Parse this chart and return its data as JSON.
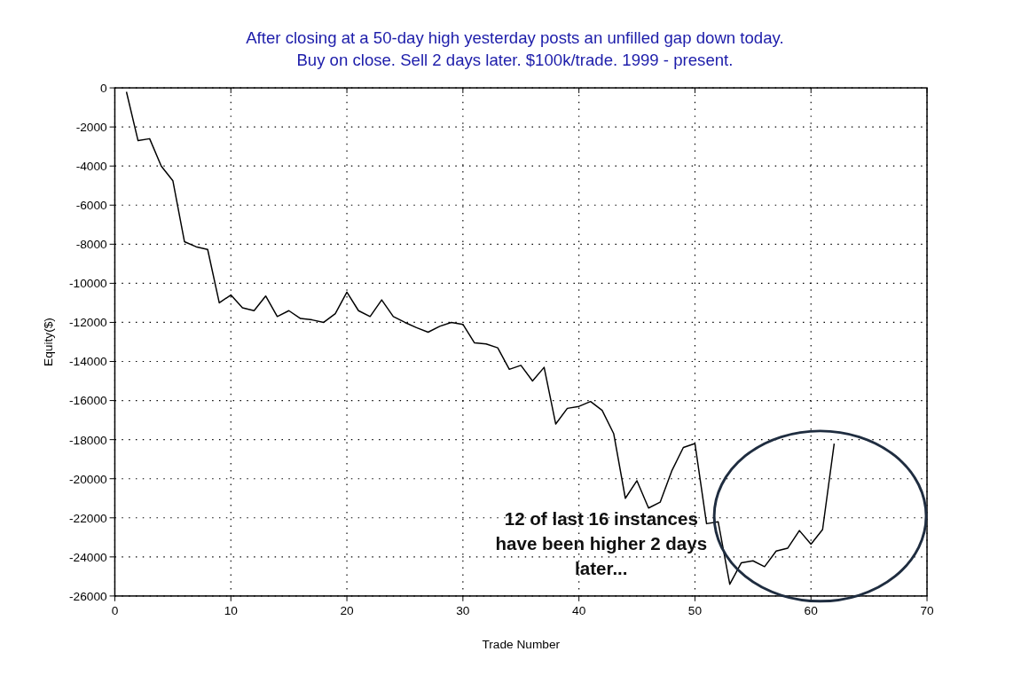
{
  "chart_data": {
    "type": "line",
    "title": "After closing at a 50-day high yesterday posts an unfilled gap down today.",
    "subtitle": "Buy on close. Sell 2 days later. $100k/trade. 1999 - present.",
    "xlabel": "Trade Number",
    "ylabel": "Equity($)",
    "x": [
      1,
      2,
      3,
      4,
      5,
      6,
      7,
      8,
      9,
      10,
      11,
      12,
      13,
      14,
      15,
      16,
      17,
      18,
      19,
      20,
      21,
      22,
      23,
      24,
      25,
      26,
      27,
      28,
      29,
      30,
      31,
      32,
      33,
      34,
      35,
      36,
      37,
      38,
      39,
      40,
      41,
      42,
      43,
      44,
      45,
      46,
      47,
      48,
      49,
      50,
      51,
      52,
      53,
      54,
      55,
      56,
      57,
      58,
      59,
      60,
      61,
      62
    ],
    "series": [
      {
        "color": "#000000",
        "values": [
          -200,
          -2700,
          -2600,
          -4000,
          -4750,
          -7870,
          -8130,
          -8270,
          -11000,
          -10600,
          -11250,
          -11400,
          -10650,
          -11700,
          -11400,
          -11800,
          -11870,
          -12000,
          -11550,
          -10450,
          -11400,
          -11700,
          -10850,
          -11700,
          -12000,
          -12270,
          -12500,
          -12200,
          -12000,
          -12100,
          -13050,
          -13100,
          -13300,
          -14400,
          -14200,
          -15000,
          -14300,
          -17200,
          -16400,
          -16300,
          -16050,
          -16500,
          -17700,
          -21000,
          -20100,
          -21500,
          -21200,
          -19600,
          -18400,
          -18200,
          -22300,
          -22200,
          -25400,
          -24300,
          -24200,
          -24500,
          -23700,
          -23550,
          -22650,
          -23350,
          -22600,
          -18200
        ]
      }
    ],
    "xlim": [
      0,
      70
    ],
    "xticks": [
      0,
      10,
      20,
      30,
      40,
      50,
      60,
      70
    ],
    "ylim": [
      -26000,
      0
    ],
    "yticks": [
      0,
      -2000,
      -4000,
      -6000,
      -8000,
      -10000,
      -12000,
      -14000,
      -16000,
      -18000,
      -20000,
      -22000,
      -24000,
      -26000
    ],
    "grid": true,
    "marker": "none",
    "line_style": "solid",
    "annotations": [
      "12 of last 16 instances have been higher 2 days later..."
    ]
  }
}
